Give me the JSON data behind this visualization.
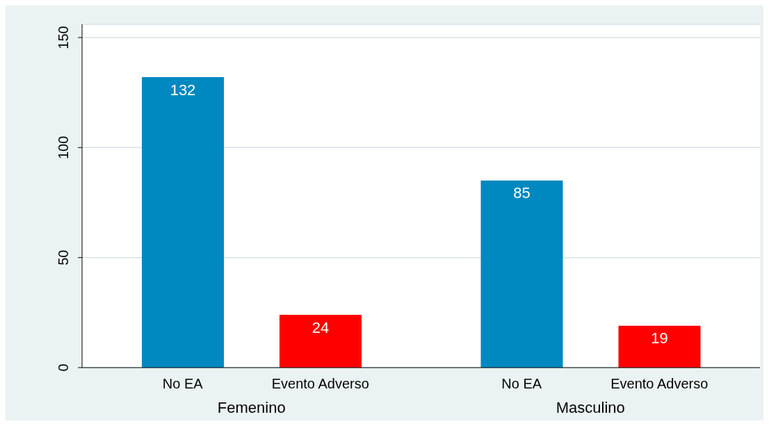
{
  "chart_data": {
    "type": "bar",
    "categories": [
      "Femenino",
      "Masculino"
    ],
    "series": [
      {
        "name": "No EA",
        "color": "#0088c0",
        "values": [
          132,
          85
        ]
      },
      {
        "name": "Evento Adverso",
        "color": "#ff0000",
        "values": [
          24,
          19
        ]
      }
    ],
    "ylim": [
      0,
      156
    ],
    "yticks": [
      0,
      50,
      100,
      150
    ],
    "grid": "y",
    "data_labels": true
  }
}
